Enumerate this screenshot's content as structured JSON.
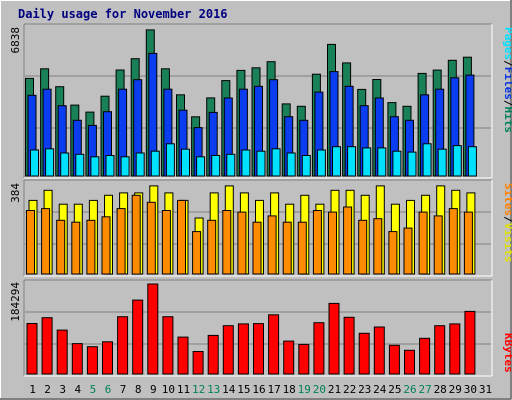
{
  "chart_data": [
    {
      "type": "bar",
      "panel": "top",
      "title": "Daily usage for November 2016",
      "y_max_label": "6838",
      "ylim": [
        0,
        6838
      ],
      "grid": true,
      "categories": [
        "1",
        "2",
        "3",
        "4",
        "5",
        "6",
        "7",
        "8",
        "9",
        "10",
        "11",
        "12",
        "13",
        "14",
        "15",
        "16",
        "17",
        "18",
        "19",
        "20",
        "21",
        "22",
        "23",
        "24",
        "25",
        "26",
        "27",
        "28",
        "29",
        "30",
        "31"
      ],
      "legend": [
        {
          "label": "Pages",
          "color": "#00e0ff"
        },
        {
          "label": "Files",
          "color": "#0030e0"
        },
        {
          "label": "Hits",
          "color": "#00805a"
        }
      ],
      "legend_separator": "/",
      "series": [
        {
          "name": "Hits",
          "color": "#1a8057",
          "values": [
            4510,
            4951,
            4125,
            3277,
            2953,
            3688,
            4897,
            5419,
            6749,
            4951,
            3751,
            2734,
            3608,
            4406,
            4878,
            4999,
            5279,
            3332,
            3222,
            4703,
            6081,
            5224,
            3999,
            4458,
            3389,
            3222,
            4739,
            4891,
            5347,
            5491,
            0
          ]
        },
        {
          "name": "Files",
          "color": "#0a3cf0",
          "values": [
            3729,
            4011,
            3250,
            2574,
            2340,
            2972,
            4011,
            4451,
            5664,
            4011,
            3040,
            2234,
            2938,
            3606,
            4011,
            4145,
            4451,
            2738,
            2574,
            3877,
            4825,
            4145,
            3250,
            3606,
            2738,
            2574,
            3750,
            4011,
            4539,
            4663,
            0
          ]
        },
        {
          "name": "Pages",
          "color": "#00e0ff",
          "values": [
            1200,
            1258,
            1062,
            1004,
            888,
            946,
            888,
            1062,
            1144,
            1486,
            1240,
            888,
            946,
            1004,
            1200,
            1144,
            1258,
            1062,
            946,
            1200,
            1356,
            1356,
            1298,
            1298,
            1144,
            1104,
            1486,
            1240,
            1406,
            1356,
            0
          ]
        }
      ]
    },
    {
      "type": "bar",
      "panel": "middle",
      "y_max_label": "384",
      "ylim": [
        0,
        384
      ],
      "grid": true,
      "categories": [
        "1",
        "2",
        "3",
        "4",
        "5",
        "6",
        "7",
        "8",
        "9",
        "10",
        "11",
        "12",
        "13",
        "14",
        "15",
        "16",
        "17",
        "18",
        "19",
        "20",
        "21",
        "22",
        "23",
        "24",
        "25",
        "26",
        "27",
        "28",
        "29",
        "30",
        "31"
      ],
      "legend": [
        {
          "label": "Sites",
          "color": "#ff8000"
        },
        {
          "label": "Visits",
          "color": "#ffff00"
        }
      ],
      "legend_separator": "/",
      "series": [
        {
          "name": "Visits",
          "color": "#ffff00",
          "values": [
            314,
            357,
            298,
            298,
            314,
            336,
            346,
            346,
            376,
            346,
            314,
            239,
            346,
            376,
            346,
            314,
            346,
            298,
            336,
            298,
            357,
            357,
            336,
            376,
            298,
            314,
            336,
            376,
            357,
            346,
            0
          ]
        },
        {
          "name": "Sites",
          "color": "#ff8c00",
          "values": [
            271,
            279,
            229,
            221,
            229,
            244,
            279,
            336,
            306,
            271,
            314,
            181,
            229,
            271,
            264,
            221,
            248,
            221,
            221,
            271,
            264,
            286,
            229,
            236,
            181,
            196,
            264,
            248,
            279,
            264,
            0
          ]
        }
      ]
    },
    {
      "type": "bar",
      "panel": "bottom",
      "y_max_label": "184294",
      "ylim": [
        0,
        184294
      ],
      "grid": true,
      "categories": [
        "1",
        "2",
        "3",
        "4",
        "5",
        "6",
        "7",
        "8",
        "9",
        "10",
        "11",
        "12",
        "13",
        "14",
        "15",
        "16",
        "17",
        "18",
        "19",
        "20",
        "21",
        "22",
        "23",
        "24",
        "25",
        "26",
        "27",
        "28",
        "29",
        "30",
        "31"
      ],
      "legend": [
        {
          "label": "KBytes",
          "color": "#ff0000"
        }
      ],
      "series": [
        {
          "name": "KBytes",
          "color": "#ff0000",
          "values": [
            103454,
            115381,
            89864,
            62205,
            55981,
            65992,
            117279,
            151250,
            184294,
            117279,
            75597,
            46023,
            79018,
            98993,
            102648,
            103186,
            121136,
            67333,
            60566,
            105057,
            144474,
            116107,
            83409,
            96280,
            58825,
            48465,
            73164,
            98993,
            102648,
            128181,
            0
          ]
        }
      ]
    }
  ],
  "x_labels": {
    "values": [
      "1",
      "2",
      "3",
      "4",
      "5",
      "6",
      "7",
      "8",
      "9",
      "10",
      "11",
      "12",
      "13",
      "14",
      "15",
      "16",
      "17",
      "18",
      "19",
      "20",
      "21",
      "22",
      "23",
      "24",
      "25",
      "26",
      "27",
      "28",
      "29",
      "30",
      "31"
    ],
    "weekend_days": [
      5,
      6,
      12,
      13,
      19,
      20,
      26,
      27
    ],
    "weekday_color": "#000000",
    "weekend_color": "#00805a"
  },
  "colors": {
    "background": "#c0c0c0",
    "plot_background": "#c0c0c0",
    "title": "#000080",
    "grid": "#808080"
  }
}
